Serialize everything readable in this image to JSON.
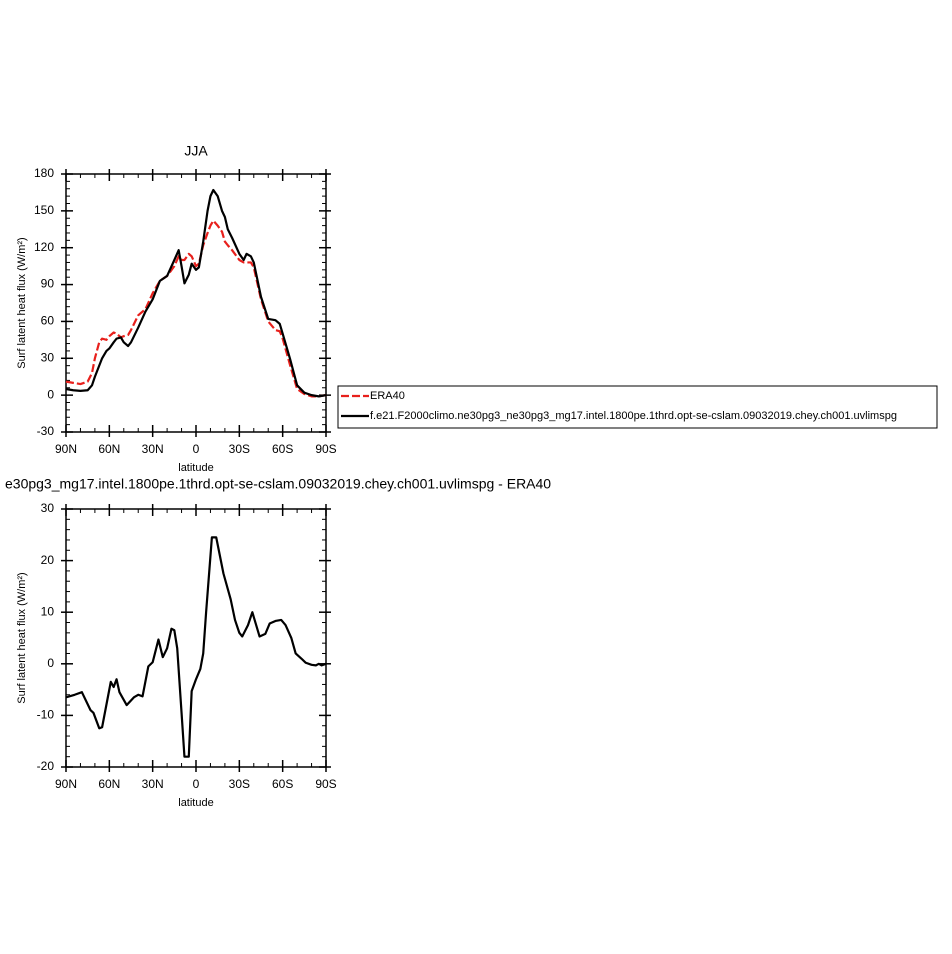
{
  "chart_data": [
    {
      "type": "line",
      "title": "JJA",
      "xlabel": "latitude",
      "ylabel": "Surf latent heat flux (W/m²)",
      "x": [
        90,
        85,
        80,
        75,
        72,
        70,
        67,
        65,
        62,
        60,
        57,
        55,
        52,
        50,
        47,
        45,
        40,
        35,
        30,
        25,
        20,
        15,
        12,
        10,
        8,
        5,
        3,
        0,
        -2,
        -5,
        -8,
        -10,
        -12,
        -15,
        -18,
        -20,
        -22,
        -25,
        -30,
        -33,
        -35,
        -38,
        -40,
        -45,
        -50,
        -55,
        -58,
        -60,
        -65,
        -70,
        -75,
        -80,
        -85,
        -90
      ],
      "series": [
        {
          "name": "ERA40",
          "color": "#e8201c",
          "linestyle": "dashed",
          "values": [
            11,
            10,
            9,
            11,
            18,
            30,
            43,
            46,
            45,
            48,
            51,
            50,
            47,
            48,
            49,
            53,
            65,
            70,
            83,
            93,
            97,
            105,
            113,
            110,
            110,
            115,
            113,
            105,
            107,
            122,
            132,
            138,
            142,
            138,
            133,
            125,
            122,
            118,
            110,
            108,
            108,
            108,
            104,
            78,
            60,
            53,
            52,
            46,
            25,
            5,
            1,
            -1,
            -1,
            0
          ]
        },
        {
          "name": "f.e21.F2000climo.ne30pg3_ne30pg3_mg17.intel.1800pe.1thrd.opt-se-cslam.09032019.chey.ch001.uvlimspg",
          "color": "#000000",
          "linestyle": "solid",
          "values": [
            5,
            4,
            3.5,
            4,
            8,
            15,
            24,
            30,
            36,
            38,
            43,
            46,
            47,
            43,
            40,
            43,
            55,
            68,
            78,
            93,
            97,
            110,
            118,
            105,
            91,
            98,
            107,
            102,
            104,
            125,
            150,
            162,
            167,
            162,
            150,
            145,
            135,
            128,
            115,
            110,
            115,
            113,
            108,
            80,
            62,
            61,
            58,
            50,
            30,
            8,
            2,
            0,
            -1,
            0
          ]
        }
      ],
      "xlim": [
        90,
        -90
      ],
      "xticks": [
        {
          "value": 90,
          "label": "90N"
        },
        {
          "value": 60,
          "label": "60N"
        },
        {
          "value": 30,
          "label": "30N"
        },
        0,
        {
          "value": -30,
          "label": "30S"
        },
        {
          "value": -60,
          "label": "60S"
        },
        {
          "value": -90,
          "label": "90S"
        }
      ],
      "ylim": [
        -30,
        180
      ],
      "yticks": [
        -30,
        0,
        30,
        60,
        90,
        120,
        150,
        180
      ],
      "legend": "outside right"
    },
    {
      "type": "line",
      "title": "e30pg3_mg17.intel.1800pe.1thrd.opt-se-cslam.09032019.chey.ch001.uvlimspg - ERA40",
      "xlabel": "latitude",
      "ylabel": "Surf latent heat flux (W/m²)",
      "x": [
        90,
        84,
        79,
        73,
        71,
        67,
        65,
        59,
        57,
        55,
        53,
        48,
        43,
        40,
        37,
        33,
        30,
        26,
        23,
        20,
        17,
        15,
        13,
        10,
        8,
        5,
        3,
        0,
        -3,
        -5,
        -7,
        -11,
        -14,
        -19,
        -24,
        -27,
        -30,
        -32,
        -36,
        -39,
        -44,
        -48,
        -51,
        -55,
        -59,
        -62,
        -66,
        -69,
        -73,
        -76,
        -80,
        -83,
        -85,
        -87,
        -90
      ],
      "values": [
        -6.5,
        -6,
        -5.5,
        -9,
        -9.5,
        -12.5,
        -12.3,
        -3.5,
        -4.5,
        -3,
        -5.5,
        -8,
        -6.5,
        -6,
        -6.3,
        -0.5,
        0.3,
        4.7,
        1.3,
        3,
        6.8,
        6.5,
        3,
        -9.5,
        -18,
        -18,
        -5.3,
        -3,
        -1,
        2,
        10,
        24.5,
        24.5,
        17.5,
        12.5,
        8.5,
        6,
        5.3,
        7.5,
        10,
        5.3,
        5.8,
        7.8,
        8.3,
        8.5,
        7.5,
        5,
        2,
        1,
        0.2,
        -0.2,
        -0.3,
        0,
        -0.3,
        0
      ],
      "color": "#000000",
      "xlim": [
        90,
        -90
      ],
      "xticks": [
        {
          "value": 90,
          "label": "90N"
        },
        {
          "value": 60,
          "label": "60N"
        },
        {
          "value": 30,
          "label": "30N"
        },
        0,
        {
          "value": -30,
          "label": "30S"
        },
        {
          "value": -60,
          "label": "60S"
        },
        {
          "value": -90,
          "label": "90S"
        }
      ],
      "ylim": [
        -20,
        30
      ],
      "yticks": [
        -20,
        -10,
        0,
        10,
        20,
        30
      ]
    }
  ]
}
